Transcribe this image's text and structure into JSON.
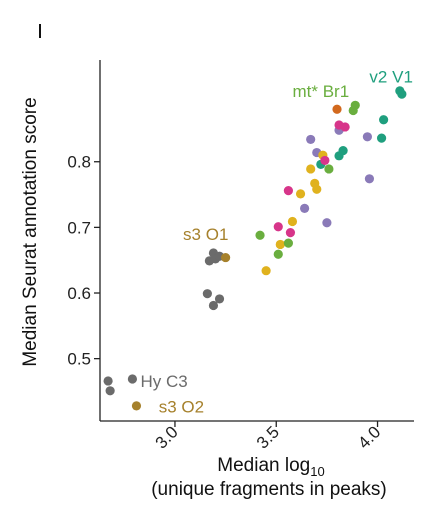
{
  "chart_data": {
    "type": "scatter",
    "title": "",
    "xlabel_line1_prefix": "Median log",
    "xlabel_line1_sub": "10",
    "xlabel_line2": "(unique fragments in peaks)",
    "ylabel": "Median Seurat annotation score",
    "xlim": [
      2.63,
      4.18
    ],
    "ylim": [
      0.405,
      0.955
    ],
    "xticks": [
      3.0,
      3.5,
      4.0
    ],
    "xtick_labels": [
      "3.0",
      "3.5",
      "4.0"
    ],
    "yticks": [
      0.5,
      0.6,
      0.7,
      0.8
    ],
    "ytick_labels": [
      "0.5",
      "0.6",
      "0.7",
      "0.8"
    ],
    "colors": {
      "gray": "#6b6b6b",
      "brown": "#a6812c",
      "green": "#6aae3f",
      "teal": "#1f9f7e",
      "purple": "#8a7ab8",
      "magenta": "#d7358a",
      "yellow": "#e0b21e",
      "orange": "#d2691e"
    },
    "points": [
      {
        "x": 2.67,
        "y": 0.466,
        "c": "gray"
      },
      {
        "x": 2.68,
        "y": 0.451,
        "c": "gray"
      },
      {
        "x": 2.79,
        "y": 0.469,
        "c": "gray"
      },
      {
        "x": 3.16,
        "y": 0.599,
        "c": "gray"
      },
      {
        "x": 3.19,
        "y": 0.581,
        "c": "gray"
      },
      {
        "x": 3.22,
        "y": 0.591,
        "c": "gray"
      },
      {
        "x": 3.17,
        "y": 0.649,
        "c": "gray"
      },
      {
        "x": 3.19,
        "y": 0.661,
        "c": "gray"
      },
      {
        "x": 3.2,
        "y": 0.652,
        "c": "gray"
      },
      {
        "x": 3.22,
        "y": 0.656,
        "c": "gray"
      },
      {
        "x": 2.81,
        "y": 0.428,
        "c": "brown"
      },
      {
        "x": 3.25,
        "y": 0.654,
        "c": "brown"
      },
      {
        "x": 3.42,
        "y": 0.688,
        "c": "green"
      },
      {
        "x": 3.45,
        "y": 0.634,
        "c": "yellow"
      },
      {
        "x": 3.51,
        "y": 0.659,
        "c": "green"
      },
      {
        "x": 3.52,
        "y": 0.674,
        "c": "yellow"
      },
      {
        "x": 3.56,
        "y": 0.676,
        "c": "green"
      },
      {
        "x": 3.57,
        "y": 0.692,
        "c": "magenta"
      },
      {
        "x": 3.58,
        "y": 0.709,
        "c": "yellow"
      },
      {
        "x": 3.51,
        "y": 0.701,
        "c": "magenta"
      },
      {
        "x": 3.56,
        "y": 0.756,
        "c": "magenta"
      },
      {
        "x": 3.62,
        "y": 0.751,
        "c": "yellow"
      },
      {
        "x": 3.64,
        "y": 0.729,
        "c": "purple"
      },
      {
        "x": 3.67,
        "y": 0.789,
        "c": "yellow"
      },
      {
        "x": 3.69,
        "y": 0.767,
        "c": "yellow"
      },
      {
        "x": 3.7,
        "y": 0.758,
        "c": "yellow"
      },
      {
        "x": 3.7,
        "y": 0.814,
        "c": "purple"
      },
      {
        "x": 3.72,
        "y": 0.796,
        "c": "teal"
      },
      {
        "x": 3.73,
        "y": 0.81,
        "c": "yellow"
      },
      {
        "x": 3.74,
        "y": 0.802,
        "c": "magenta"
      },
      {
        "x": 3.76,
        "y": 0.789,
        "c": "green"
      },
      {
        "x": 3.67,
        "y": 0.834,
        "c": "purple"
      },
      {
        "x": 3.75,
        "y": 0.707,
        "c": "purple"
      },
      {
        "x": 3.81,
        "y": 0.809,
        "c": "teal"
      },
      {
        "x": 3.83,
        "y": 0.817,
        "c": "teal"
      },
      {
        "x": 3.8,
        "y": 0.88,
        "c": "orange"
      },
      {
        "x": 3.81,
        "y": 0.848,
        "c": "purple"
      },
      {
        "x": 3.81,
        "y": 0.856,
        "c": "magenta"
      },
      {
        "x": 3.84,
        "y": 0.853,
        "c": "magenta"
      },
      {
        "x": 3.88,
        "y": 0.878,
        "c": "green"
      },
      {
        "x": 3.89,
        "y": 0.886,
        "c": "green"
      },
      {
        "x": 3.95,
        "y": 0.838,
        "c": "purple"
      },
      {
        "x": 3.96,
        "y": 0.774,
        "c": "purple"
      },
      {
        "x": 4.02,
        "y": 0.836,
        "c": "teal"
      },
      {
        "x": 4.03,
        "y": 0.864,
        "c": "teal"
      },
      {
        "x": 4.11,
        "y": 0.908,
        "c": "teal"
      },
      {
        "x": 4.12,
        "y": 0.903,
        "c": "teal"
      }
    ],
    "annotations": [
      {
        "text": "mt* Br1",
        "x": 3.86,
        "y": 0.908,
        "c": "green",
        "anchor": "end"
      },
      {
        "text": "v2 V1",
        "x": 3.96,
        "y": 0.93,
        "c": "teal",
        "anchor": "start"
      },
      {
        "text": "s3 O1",
        "x": 3.04,
        "y": 0.69,
        "c": "brown",
        "anchor": "start"
      },
      {
        "text": "Hy C3",
        "x": 2.83,
        "y": 0.466,
        "c": "gray",
        "anchor": "start"
      },
      {
        "text": "s3 O2",
        "x": 2.92,
        "y": 0.427,
        "c": "brown",
        "anchor": "start"
      }
    ]
  }
}
